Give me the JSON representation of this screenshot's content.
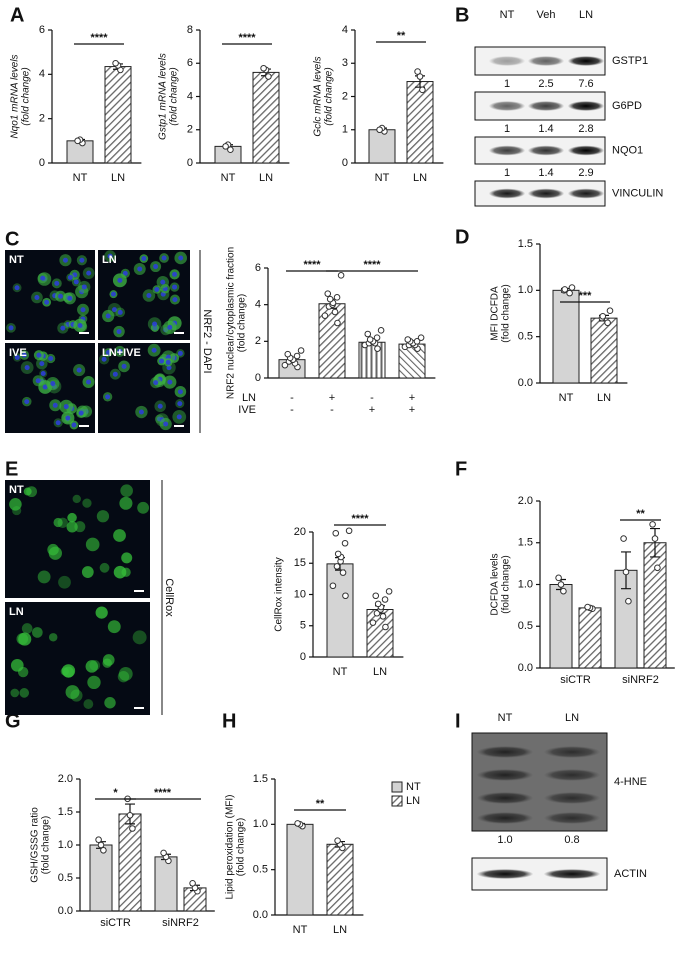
{
  "panel_labels": [
    "A",
    "B",
    "C",
    "D",
    "E",
    "F",
    "G",
    "H",
    "I"
  ],
  "chart_data": [
    {
      "type": "bar",
      "ylabel": [
        "Nqo1 mRNA levels",
        "(fold change)"
      ],
      "categories": [
        "NT",
        "LN"
      ],
      "values": [
        1.0,
        4.35
      ],
      "errors": [
        0.06,
        0.12
      ],
      "points": [
        [
          0.9,
          1.05,
          1.0
        ],
        [
          4.2,
          4.4,
          4.5
        ]
      ],
      "patterns": [
        "solid",
        "diagonal"
      ],
      "ylim": [
        0,
        6
      ],
      "yticks": [
        0,
        2,
        4,
        6
      ],
      "significance": [
        {
          "label": "****",
          "from": 0,
          "to": 1
        }
      ]
    },
    {
      "type": "bar",
      "ylabel": [
        "Gstp1 mRNA levels",
        "(fold change)"
      ],
      "categories": [
        "NT",
        "LN"
      ],
      "values": [
        1.0,
        5.45
      ],
      "errors": [
        0.1,
        0.2
      ],
      "points": [
        [
          0.8,
          1.1,
          1.0
        ],
        [
          5.2,
          5.6,
          5.7
        ]
      ],
      "patterns": [
        "solid",
        "diagonal"
      ],
      "ylim": [
        0,
        8
      ],
      "yticks": [
        0,
        2,
        4,
        6,
        8
      ],
      "significance": [
        {
          "label": "****",
          "from": 0,
          "to": 1
        }
      ]
    },
    {
      "type": "bar",
      "ylabel": [
        "Gclc mRNA levels",
        "(fold change)"
      ],
      "categories": [
        "NT",
        "LN"
      ],
      "values": [
        1.0,
        2.45
      ],
      "errors": [
        0.05,
        0.17
      ],
      "points": [
        [
          0.95,
          1.05,
          1.0
        ],
        [
          2.2,
          2.6,
          2.75
        ]
      ],
      "patterns": [
        "solid",
        "diagonal"
      ],
      "ylim": [
        0,
        4
      ],
      "yticks": [
        0,
        1,
        2,
        3,
        4
      ],
      "significance": [
        {
          "label": "**",
          "from": 0,
          "to": 1
        }
      ]
    },
    {
      "type": "bar",
      "ylabel": [
        "NRF2 nuclear/cytoplasmic fraction",
        "(fold change)"
      ],
      "categories": [
        null,
        null,
        null,
        null
      ],
      "values": [
        1.0,
        4.05,
        1.95,
        1.85
      ],
      "errors": [
        0.1,
        0.25,
        0.1,
        0.07
      ],
      "points": [
        [
          0.6,
          0.7,
          0.8,
          0.9,
          1.0,
          1.0,
          1.1,
          1.2,
          1.3,
          1.5
        ],
        [
          3.0,
          3.4,
          3.6,
          3.9,
          4.0,
          4.1,
          4.3,
          4.4,
          4.6,
          5.6
        ],
        [
          1.6,
          1.8,
          1.9,
          1.9,
          2.0,
          2.0,
          2.1,
          2.2,
          2.4,
          2.6
        ],
        [
          1.6,
          1.7,
          1.8,
          1.8,
          1.9,
          1.9,
          2.0,
          2.0,
          2.1,
          2.2
        ]
      ],
      "patterns": [
        "solid",
        "diagonal",
        "vertical",
        "diagonal-reverse"
      ],
      "ylim": [
        0,
        6
      ],
      "yticks": [
        0,
        2,
        4,
        6
      ],
      "conditions": [
        {
          "name": "LN",
          "values": [
            "-",
            "+",
            "-",
            "+"
          ]
        },
        {
          "name": "IVE",
          "values": [
            "-",
            "-",
            "+",
            "+"
          ]
        }
      ],
      "significance": [
        {
          "label": "****",
          "from": 0,
          "to": 1
        },
        {
          "label": "****",
          "from": 1,
          "to": 3
        }
      ]
    },
    {
      "type": "bar",
      "ylabel": [
        "MFI DCFDA",
        "(fold change)"
      ],
      "categories": [
        "NT",
        "LN"
      ],
      "values": [
        1.0,
        0.7
      ],
      "errors": [
        0.02,
        0.03
      ],
      "points": [
        [
          0.97,
          1.0,
          1.01,
          1.03
        ],
        [
          0.65,
          0.7,
          0.72,
          0.78
        ]
      ],
      "patterns": [
        "solid",
        "diagonal"
      ],
      "ylim": [
        0,
        1.5
      ],
      "yticks": [
        {
          "value": 0,
          "label": "0.0"
        },
        {
          "value": 0.5,
          "label": "0.5"
        },
        {
          "value": 1,
          "label": "1.0"
        },
        {
          "value": 1.5,
          "label": "1.5"
        }
      ],
      "significance": [
        {
          "label": "***",
          "from": 0,
          "to": 1
        }
      ]
    },
    {
      "type": "bar",
      "ylabel": [
        "CellRox intensity"
      ],
      "categories": [
        "NT",
        "LN"
      ],
      "values": [
        14.9,
        7.6
      ],
      "errors": [
        1.0,
        0.6
      ],
      "points": [
        [
          9.8,
          11.4,
          13.5,
          14.5,
          15.3,
          16.0,
          16.5,
          18.2,
          19.8,
          20.2
        ],
        [
          4.8,
          5.5,
          6.5,
          7.0,
          7.6,
          8.0,
          8.5,
          9.2,
          9.8,
          10.5
        ]
      ],
      "patterns": [
        "solid",
        "diagonal"
      ],
      "ylim": [
        0,
        20
      ],
      "yticks": [
        0,
        5,
        10,
        15,
        20
      ],
      "significance": [
        {
          "label": "****",
          "from": 0,
          "to": 1
        }
      ]
    },
    {
      "type": "bar",
      "ylabel": [
        "DCFDA levels",
        "(fold change)"
      ],
      "categories": [
        null,
        null,
        null,
        null
      ],
      "groups": [
        "siCTR",
        "siNRF2"
      ],
      "values": [
        1.0,
        0.72,
        1.17,
        1.5
      ],
      "errors": [
        0.06,
        0.01,
        0.22,
        0.17
      ],
      "points": [
        [
          0.92,
          1.0,
          1.08
        ],
        [
          0.71,
          0.72,
          0.73
        ],
        [
          0.8,
          1.15,
          1.55
        ],
        [
          1.2,
          1.55,
          1.72
        ]
      ],
      "patterns": [
        "solid",
        "diagonal",
        "solid",
        "diagonal"
      ],
      "ylim": [
        0,
        2
      ],
      "yticks": [
        {
          "value": 0,
          "label": "0.0"
        },
        {
          "value": 0.5,
          "label": "0.5"
        },
        {
          "value": 1,
          "label": "1.0"
        },
        {
          "value": 1.5,
          "label": "1.5"
        },
        {
          "value": 2,
          "label": "2.0"
        }
      ],
      "significance": [
        {
          "label": "**",
          "from": 2,
          "to": 3
        }
      ]
    },
    {
      "type": "bar",
      "ylabel": [
        "GSH/GSSG ratio",
        "(fold change)"
      ],
      "categories": [
        null,
        null,
        null,
        null
      ],
      "groups": [
        "siCTR",
        "siNRF2"
      ],
      "values": [
        1.0,
        1.47,
        0.82,
        0.35
      ],
      "errors": [
        0.05,
        0.15,
        0.04,
        0.04
      ],
      "points": [
        [
          0.92,
          1.0,
          1.08
        ],
        [
          1.25,
          1.45,
          1.7
        ],
        [
          0.76,
          0.82,
          0.88
        ],
        [
          0.3,
          0.35,
          0.42
        ]
      ],
      "patterns": [
        "solid",
        "diagonal",
        "solid",
        "diagonal"
      ],
      "ylim": [
        0,
        2
      ],
      "yticks": [
        {
          "value": 0,
          "label": "0.0"
        },
        {
          "value": 0.5,
          "label": "0.5"
        },
        {
          "value": 1,
          "label": "1.0"
        },
        {
          "value": 1.5,
          "label": "1.5"
        },
        {
          "value": 2,
          "label": "2.0"
        }
      ],
      "significance": [
        {
          "label": "*",
          "from": 0,
          "to": 1
        },
        {
          "label": "****",
          "from": 1,
          "to": 3
        }
      ]
    },
    {
      "type": "bar",
      "ylabel": [
        "Lipid peroxidation (MFI)",
        "(fold change)"
      ],
      "categories": [
        "NT",
        "LN"
      ],
      "values": [
        1.0,
        0.78
      ],
      "errors": [
        0.01,
        0.03
      ],
      "points": [
        [
          0.98,
          1.0,
          1.01
        ],
        [
          0.74,
          0.78,
          0.82
        ]
      ],
      "patterns": [
        "solid",
        "diagonal"
      ],
      "ylim": [
        0,
        1.5
      ],
      "yticks": [
        {
          "value": 0,
          "label": "0.0"
        },
        {
          "value": 0.5,
          "label": "0.5"
        },
        {
          "value": 1,
          "label": "1.0"
        },
        {
          "value": 1.5,
          "label": "1.5"
        }
      ],
      "legend": [
        "NT",
        "LN"
      ],
      "significance": [
        {
          "label": "**",
          "from": 0,
          "to": 1
        }
      ]
    }
  ],
  "blot_b": {
    "lanes": [
      "NT",
      "Veh",
      "LN"
    ],
    "rows": [
      {
        "label": "GSTP1",
        "quant": [
          1,
          2.5,
          7.6
        ]
      },
      {
        "label": "G6PD",
        "quant": [
          1,
          1.4,
          2.8
        ]
      },
      {
        "label": "NQO1",
        "quant": [
          1,
          1.4,
          2.9
        ]
      },
      {
        "label": "VINCULIN"
      }
    ]
  },
  "blot_i": {
    "lanes": [
      "NT",
      "LN"
    ],
    "rows": [
      {
        "label": "4-HNE",
        "quant": [
          "1.0",
          "0.8"
        ]
      },
      {
        "label": "ACTIN"
      }
    ]
  },
  "micrographs_c": {
    "tiles": [
      "NT",
      "LN",
      "IVE",
      "LN+IVE"
    ],
    "side_label": "NRF2 - DAPI"
  },
  "micrographs_e": {
    "tiles": [
      "NT",
      "LN"
    ],
    "side_label": "CellRox"
  }
}
